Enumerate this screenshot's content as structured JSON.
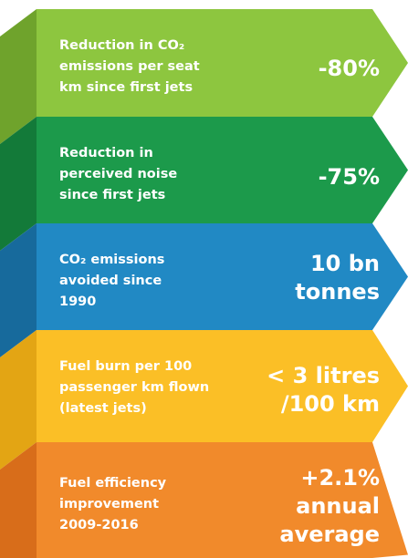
{
  "items": [
    {
      "label": [
        "Reduction in CO₂",
        "emissions per seat",
        "km since first jets"
      ],
      "value": [
        "-80%"
      ],
      "color": "#8dc63f",
      "shade": "#6fa32c"
    },
    {
      "label": [
        "Reduction in",
        "perceived noise",
        "since first jets"
      ],
      "value": [
        "-75%"
      ],
      "color": "#1c9a4b",
      "shade": "#137a39"
    },
    {
      "label": [
        "CO₂ emissions",
        "avoided since",
        "1990"
      ],
      "value": [
        "10 bn",
        "tonnes"
      ],
      "color": "#2189c4",
      "shade": "#176a9c"
    },
    {
      "label": [
        "Fuel burn per 100",
        "passenger km flown",
        "(latest jets)"
      ],
      "value": [
        "< 3 litres",
        "/100 km"
      ],
      "color": "#fbbf26",
      "shade": "#e3a514"
    },
    {
      "label": [
        "Fuel efficiency",
        "improvement",
        "2009-2016"
      ],
      "value": [
        "+2.1%",
        "annual",
        "average"
      ],
      "color": "#f18a2b",
      "shade": "#d86d1a"
    }
  ]
}
